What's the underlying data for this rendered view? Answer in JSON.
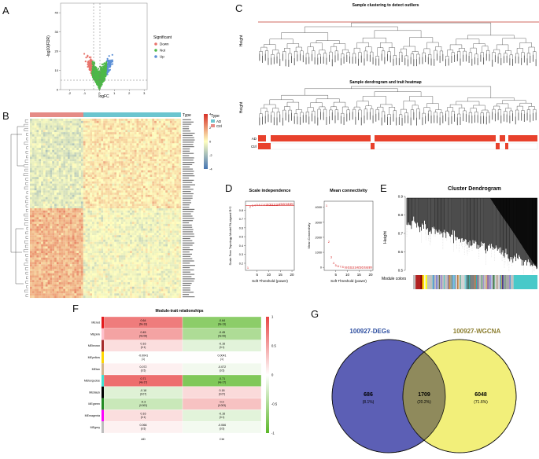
{
  "panels": {
    "A": {
      "label": "A",
      "chart_data": {
        "type": "scatter",
        "title": "",
        "xlabel": "logFC",
        "ylabel": "-log10(FDR)",
        "xticks": [
          "-2",
          "-1",
          "0",
          "1",
          "2",
          "3"
        ],
        "yticks": [
          "0",
          "10",
          "20",
          "30",
          "40"
        ],
        "legend_title": "Significant",
        "series": [
          {
            "name": "Down",
            "color": "#e8736b"
          },
          {
            "name": "Not",
            "color": "#4db848"
          },
          {
            "name": "Up",
            "color": "#5b8fd6"
          }
        ]
      }
    },
    "B": {
      "label": "B",
      "type_label": "Type",
      "legend_title": "Type",
      "legend_items": [
        "AD",
        "Ctrl"
      ],
      "scale_ticks": [
        "4",
        "2",
        "0",
        "-2",
        "-4"
      ],
      "colors": {
        "ad": "#6cc5cf",
        "ctrl": "#e58b86",
        "high": "#d73027",
        "mid": "#ffffbf",
        "low": "#4575b4"
      }
    },
    "C": {
      "label": "C",
      "title_top": "Sample clustering to detect outliers",
      "title_bottom": "Sample dendrogram and trait heatmap",
      "height_label": "Height",
      "trait_rows": [
        "AD",
        "Ctrl"
      ],
      "trait_color": "#e8412c"
    },
    "D": {
      "label": "D",
      "chart_data": [
        {
          "type": "scatter",
          "title": "Scale independence",
          "xlabel": "Soft Threshold (power)",
          "ylabel": "Scale Free Topology Model Fit,signed R^2",
          "xticks": [
            "5",
            "10",
            "15",
            "20"
          ],
          "yticks": [
            "0.2",
            "0.3",
            "0.4",
            "0.5",
            "0.6",
            "0.7",
            "0.8"
          ],
          "xlim": [
            0,
            21
          ],
          "ylim": [
            0.12,
            0.9
          ],
          "x": [
            1,
            2,
            3,
            4,
            5,
            6,
            7,
            8,
            9,
            10,
            11,
            12,
            13,
            14,
            15,
            16,
            17,
            18,
            19,
            20
          ],
          "y": [
            0.15,
            0.84,
            0.85,
            0.855,
            0.86,
            0.86,
            0.86,
            0.862,
            0.863,
            0.863,
            0.865,
            0.865,
            0.866,
            0.866,
            0.867,
            0.867,
            0.868,
            0.868,
            0.869,
            0.869
          ]
        },
        {
          "type": "scatter",
          "title": "Mean connectivity",
          "xlabel": "Soft Threshold (power)",
          "ylabel": "Mean Connectivity",
          "xticks": [
            "5",
            "10",
            "15",
            "20"
          ],
          "yticks": [
            "0",
            "1000",
            "2000",
            "3000",
            "4000"
          ],
          "xlim": [
            0,
            21
          ],
          "ylim": [
            -200,
            4400
          ],
          "x": [
            1,
            2,
            3,
            4,
            5,
            6,
            7,
            8,
            9,
            10,
            11,
            12,
            13,
            14,
            15,
            16,
            17,
            18,
            19,
            20
          ],
          "y": [
            4100,
            1700,
            700,
            300,
            150,
            80,
            50,
            30,
            20,
            15,
            10,
            8,
            6,
            5,
            4,
            3,
            3,
            2,
            2,
            2
          ]
        }
      ]
    },
    "E": {
      "label": "E",
      "title": "Cluster Dendrogram",
      "ylabel": "Height",
      "yticks": [
        "0.9",
        "0.8",
        "0.7",
        "0.6",
        "0.5"
      ],
      "module_label": "Module colors",
      "module_colors": [
        "#c0c0c0",
        "#b22222",
        "#8b0000",
        "#ffd700",
        "#f5f5dc",
        "#ffff00",
        "#c0c0c0",
        "#a9a9a9",
        "#87ceeb",
        "#d3d3d3",
        "#4169e1",
        "#808080",
        "#c0c0c0",
        "#9370db",
        "#b0c4de",
        "#2e8b57",
        "#d3d3d3",
        "#00008b",
        "#a9a9a9",
        "#c0c0c0",
        "#48c9c9"
      ],
      "module_widths": [
        6,
        12,
        4,
        5,
        3,
        4,
        50,
        12,
        5,
        30,
        4,
        25,
        20,
        4,
        10,
        4,
        18,
        3,
        15,
        10,
        58
      ]
    },
    "F": {
      "label": "F",
      "chart_data": {
        "type": "heatmap",
        "title": "Module-trait relationships",
        "columns": [
          "AD",
          "Ctrl"
        ],
        "rows": [
          "MEred",
          "MEpink",
          "MEbrown",
          "MEyellow",
          "MEtan",
          "MEturquoise",
          "MEblack",
          "MEgreen",
          "MEmagenta",
          "MEgrey"
        ],
        "row_colors": [
          "#e41a1c",
          "#ffc0cb",
          "#a52a2a",
          "#ffd700",
          "#d2b48c",
          "#40e0d0",
          "#000000",
          "#228b22",
          "#ff00ff",
          "#bdbdbd"
        ],
        "values": [
          [
            0.64,
            -0.64
          ],
          [
            0.45,
            -0.45
          ],
          [
            0.16,
            -0.16
          ],
          [
            -0.0041,
            0.0041
          ],
          [
            0.072,
            -0.072
          ],
          [
            0.71,
            -0.71
          ],
          [
            -0.18,
            0.18
          ],
          [
            -0.3,
            0.3
          ],
          [
            0.16,
            -0.16
          ],
          [
            0.066,
            -0.066
          ]
        ],
        "cell_text": [
          [
            "0.64\n(9e-13)",
            "-0.64\n(9e-13)"
          ],
          [
            "0.45\n(4e-06)",
            "-0.45\n(4e-06)"
          ],
          [
            "0.16\n(0.1)",
            "-0.16\n(0.1)"
          ],
          [
            "-0.0041\n(1)",
            "0.0041\n(1)"
          ],
          [
            "0.072\n(0.5)",
            "-0.072\n(0.5)"
          ],
          [
            "0.71\n(4e-17)",
            "-0.71\n(4e-17)"
          ],
          [
            "-0.18\n(0.07)",
            "0.18\n(0.07)"
          ],
          [
            "-0.3\n(0.003)",
            "0.3\n(0.003)"
          ],
          [
            "0.16\n(0.1)",
            "-0.16\n(0.1)"
          ],
          [
            "0.066\n(0.5)",
            "-0.066\n(0.5)"
          ]
        ],
        "scale_ticks": [
          "1",
          "0.5",
          "0",
          "-0.5",
          "-1"
        ]
      }
    },
    "G": {
      "label": "G",
      "left_title": "100927-DEGs",
      "right_title": "100927-WGCNA",
      "left_count": "686",
      "left_pct": "(8.1%)",
      "mid_count": "1709",
      "mid_pct": "(20.2%)",
      "right_count": "6048",
      "right_pct": "(71.6%)",
      "left_color": "#5c5fb5",
      "right_color": "#f2ef7a",
      "mid_color": "#8f8a5c",
      "left_title_color": "#2e4fa0",
      "right_title_color": "#8b7d2e"
    }
  }
}
